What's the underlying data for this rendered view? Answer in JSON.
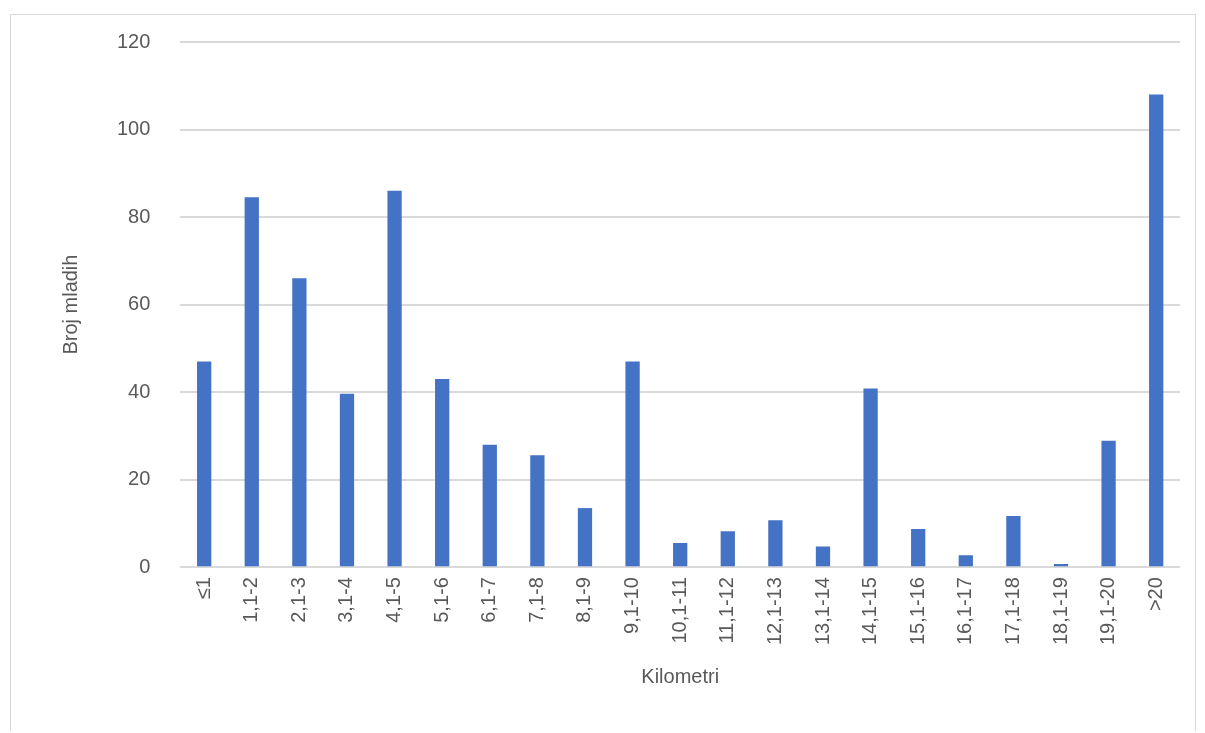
{
  "chart_data": {
    "type": "bar",
    "xlabel": "Kilometri",
    "ylabel": "Broj mladih",
    "categories": [
      "≤1",
      "1,1-2",
      "2,1-3",
      "3,1-4",
      "4,1-5",
      "5,1-6",
      "6,1-7",
      "7,1-8",
      "8,1-9",
      "9,1-10",
      "10,1-11",
      "11,1-12",
      "12,1-13",
      "13,1-14",
      "14,1-15",
      "15,1-16",
      "16,1-17",
      "17,1-18",
      "18,1-19",
      "19,1-20",
      ">20"
    ],
    "values": [
      47,
      84.5,
      66,
      39.6,
      86,
      43,
      28,
      25.6,
      13.5,
      47,
      5.5,
      8.2,
      10.7,
      4.7,
      40.8,
      8.7,
      2.7,
      11.7,
      0.7,
      28.9,
      108
    ],
    "color": "#4472c4",
    "ylim": [
      0,
      120
    ],
    "yticks": [
      0,
      20,
      40,
      60,
      80,
      100,
      120
    ],
    "grid": "y",
    "legend": false
  }
}
